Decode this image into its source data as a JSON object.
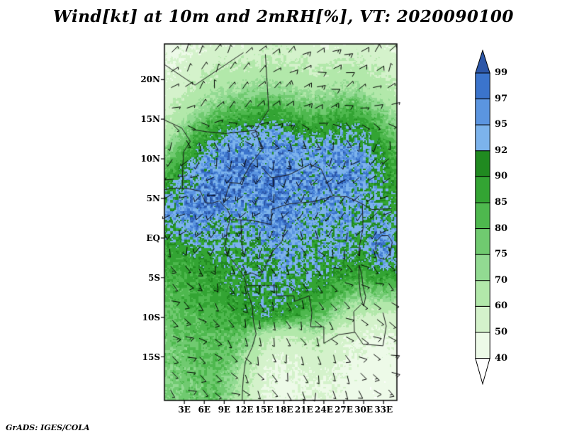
{
  "page": {
    "background": "#ffffff"
  },
  "title": "Wind[kt] at 10m and 2mRH[%], VT: 2020090100",
  "credit": "GrADS: IGES/COLA",
  "chart_data": {
    "type": "heatmap",
    "title": "Wind[kt] at 10m and 2mRH[%], VT: 2020090100",
    "shaded_variable": "2m relative humidity [%]",
    "overlay_variable": "10m wind barbs [kt]",
    "valid_time": "2020090100",
    "x_ticks": {
      "labels": [
        "3E",
        "6E",
        "9E",
        "12E",
        "15E",
        "18E",
        "21E",
        "24E",
        "27E",
        "30E",
        "33E"
      ],
      "lons": [
        3,
        6,
        9,
        12,
        15,
        18,
        21,
        24,
        27,
        30,
        33
      ]
    },
    "y_ticks": {
      "labels": [
        "20N",
        "15N",
        "10N",
        "5N",
        "EQ",
        "5S",
        "10S",
        "15S"
      ],
      "lats": [
        20,
        15,
        10,
        5,
        0,
        -5,
        -10,
        -15
      ]
    },
    "lon_range": [
      0,
      35
    ],
    "lat_range": [
      -20.5,
      24.5
    ],
    "grid_on": false,
    "legend_position": "right",
    "colorbar": {
      "orientation": "vertical",
      "labels": [
        "99",
        "97",
        "95",
        "92",
        "90",
        "85",
        "80",
        "75",
        "70",
        "60",
        "50",
        "40"
      ],
      "levels": [
        99,
        97,
        95,
        92,
        90,
        85,
        80,
        75,
        70,
        60,
        50,
        40
      ],
      "colors": [
        "#2c56a7",
        "#3b74cc",
        "#5b95e0",
        "#7cb3ec",
        "#208a20",
        "#33a433",
        "#4eb84e",
        "#70ca70",
        "#92da92",
        "#b2e8aa",
        "#d4f2cb",
        "#edfae8",
        "#ffffff"
      ]
    },
    "rh_grid": {
      "lons": [
        0,
        2.5,
        5,
        7.5,
        10,
        12.5,
        15,
        17.5,
        20,
        22.5,
        25,
        27.5,
        30,
        32.5,
        35
      ],
      "lats": [
        24.5,
        21.9,
        19.2,
        16.6,
        13.9,
        11.3,
        8.6,
        6.0,
        3.3,
        0.7,
        -2.0,
        -4.6,
        -7.3,
        -9.9,
        -12.6,
        -15.2,
        -17.9,
        -20.5
      ],
      "values": [
        [
          46,
          48,
          50,
          52,
          50,
          52,
          56,
          58,
          55,
          52,
          50,
          52,
          55,
          52,
          50
        ],
        [
          48,
          52,
          56,
          58,
          60,
          60,
          62,
          62,
          60,
          58,
          60,
          62,
          60,
          58,
          54
        ],
        [
          52,
          56,
          62,
          66,
          68,
          70,
          72,
          70,
          68,
          66,
          68,
          70,
          68,
          64,
          58
        ],
        [
          56,
          62,
          70,
          76,
          80,
          82,
          85,
          83,
          80,
          78,
          80,
          82,
          80,
          74,
          66
        ],
        [
          62,
          72,
          82,
          88,
          91,
          92,
          93,
          92,
          90,
          88,
          90,
          91,
          90,
          84,
          74
        ],
        [
          72,
          82,
          91,
          94,
          96,
          96,
          95,
          96,
          95,
          94,
          95,
          95,
          94,
          90,
          82
        ],
        [
          82,
          90,
          94,
          96,
          97,
          97,
          96,
          97,
          96,
          95,
          96,
          96,
          95,
          92,
          85
        ],
        [
          90,
          94,
          96,
          97,
          97,
          96,
          97,
          96,
          96,
          95,
          96,
          95,
          94,
          92,
          88
        ],
        [
          94,
          96,
          97,
          96,
          95,
          94,
          96,
          97,
          95,
          94,
          95,
          94,
          93,
          92,
          90
        ],
        [
          90,
          93,
          95,
          93,
          92,
          93,
          95,
          96,
          94,
          93,
          94,
          93,
          92,
          96,
          92
        ],
        [
          86,
          88,
          90,
          90,
          91,
          92,
          93,
          94,
          93,
          92,
          93,
          92,
          90,
          96,
          92
        ],
        [
          83,
          85,
          87,
          88,
          90,
          91,
          92,
          93,
          92,
          91,
          90,
          88,
          86,
          90,
          87
        ],
        [
          81,
          83,
          85,
          86,
          88,
          90,
          91,
          92,
          90,
          88,
          85,
          80,
          74,
          76,
          74
        ],
        [
          79,
          81,
          83,
          84,
          86,
          88,
          90,
          88,
          86,
          82,
          74,
          64,
          58,
          56,
          58
        ],
        [
          77,
          79,
          81,
          82,
          82,
          76,
          64,
          58,
          60,
          64,
          58,
          52,
          50,
          48,
          50
        ],
        [
          76,
          78,
          80,
          81,
          78,
          68,
          54,
          50,
          52,
          56,
          54,
          50,
          47,
          45,
          47
        ],
        [
          75,
          77,
          79,
          80,
          74,
          62,
          50,
          47,
          49,
          52,
          50,
          47,
          45,
          44,
          45
        ],
        [
          74,
          76,
          78,
          79,
          72,
          60,
          49,
          46,
          48,
          50,
          48,
          46,
          44,
          43,
          44
        ]
      ]
    },
    "wind_barbs": {
      "units": "kt",
      "full_barb_kt": 10,
      "half_barb_kt": 5,
      "typical_speed_range_kt": [
        5,
        15
      ]
    }
  }
}
